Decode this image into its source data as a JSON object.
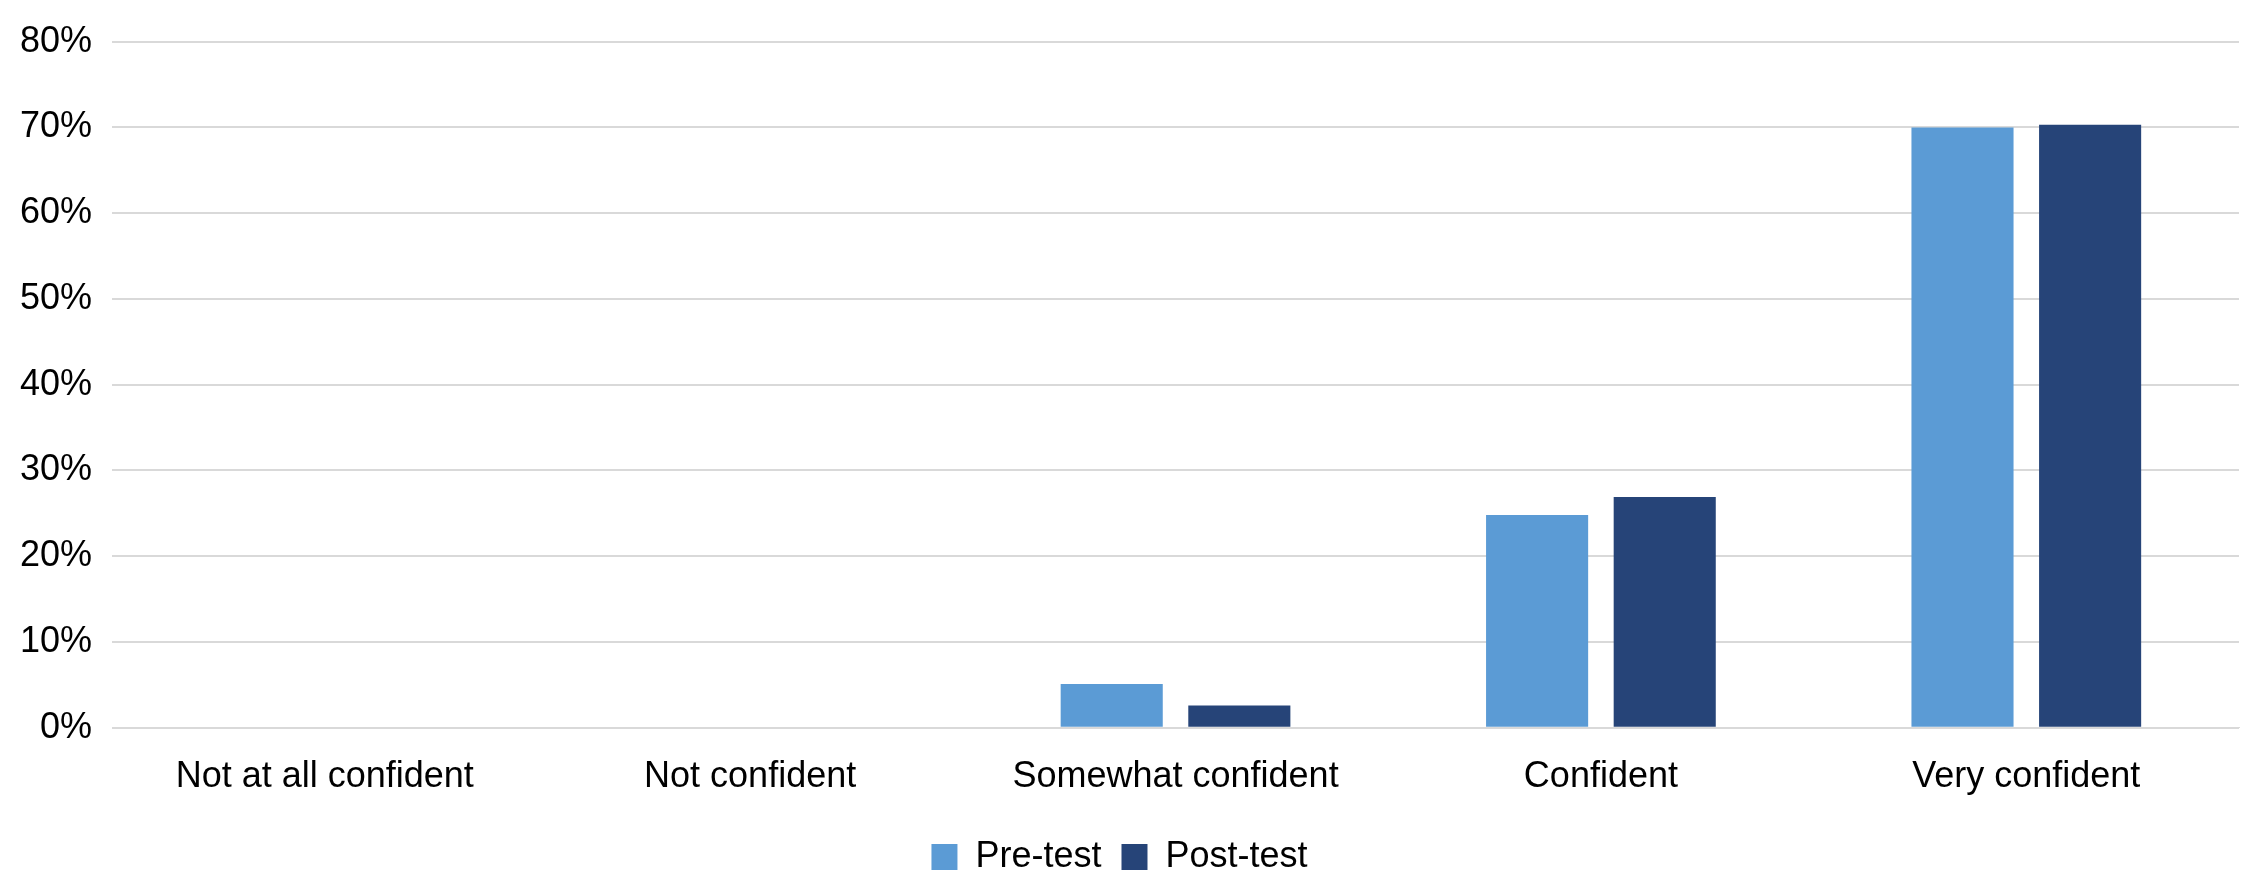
{
  "chart_data": {
    "type": "bar",
    "categories": [
      "Not at all confident",
      "Not confident",
      "Somewhat confident",
      "Confident",
      "Very confident"
    ],
    "series": [
      {
        "name": "Pre-test",
        "color": "#5b9bd5",
        "values": [
          0,
          0,
          5.1,
          24.8,
          70.0
        ]
      },
      {
        "name": "Post-test",
        "color": "#264478",
        "values": [
          0,
          0,
          2.6,
          26.9,
          70.3
        ]
      }
    ],
    "ylim": [
      0,
      80
    ],
    "yticks": [
      {
        "value": 0,
        "label": "0%"
      },
      {
        "value": 10,
        "label": "10%"
      },
      {
        "value": 20,
        "label": "20%"
      },
      {
        "value": 30,
        "label": "30%"
      },
      {
        "value": 40,
        "label": "40%"
      },
      {
        "value": 50,
        "label": "50%"
      },
      {
        "value": 60,
        "label": "60%"
      },
      {
        "value": 70,
        "label": "70%"
      },
      {
        "value": 80,
        "label": "80%"
      }
    ],
    "grid": "y",
    "legend": "bottom"
  }
}
